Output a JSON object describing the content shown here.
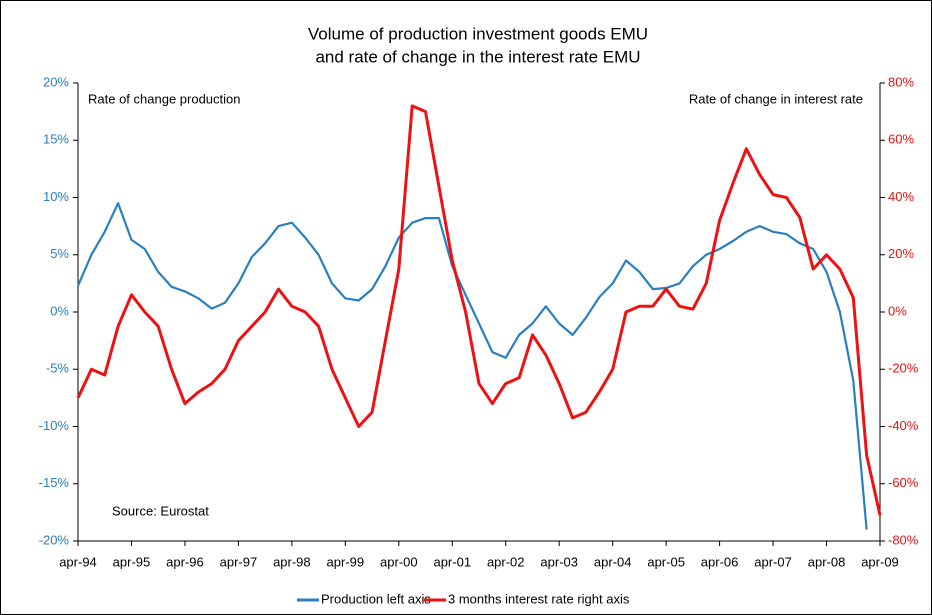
{
  "chart_data": {
    "type": "line",
    "title": [
      "Volume of production investment goods EMU",
      "and rate of change in the interest rate EMU"
    ],
    "annotations": {
      "left": "Rate of change production",
      "right": "Rate of change in interest rate",
      "source": "Source: Eurostat"
    },
    "categories": [
      "apr-94",
      null,
      null,
      null,
      "apr-95",
      null,
      null,
      null,
      "apr-96",
      null,
      null,
      null,
      "apr-97",
      null,
      null,
      null,
      "apr-98",
      null,
      null,
      null,
      "apr-99",
      null,
      null,
      null,
      "apr-00",
      null,
      null,
      null,
      "apr-01",
      null,
      null,
      null,
      "apr-02",
      null,
      null,
      null,
      "apr-03",
      null,
      null,
      null,
      "apr-04",
      null,
      null,
      null,
      "apr-05",
      null,
      null,
      null,
      "apr-06",
      null,
      null,
      null,
      "apr-07",
      null,
      null,
      null,
      "apr-08",
      null,
      null,
      null,
      "apr-09"
    ],
    "series": [
      {
        "name": "Production left axis",
        "color": "#2a7fc1",
        "axis": "y",
        "values": [
          2.3,
          5,
          7,
          9.5,
          6.3,
          5.5,
          3.5,
          2.2,
          1.8,
          1.2,
          0.3,
          0.8,
          2.5,
          4.8,
          6,
          7.5,
          7.8,
          6.5,
          5,
          2.5,
          1.2,
          1,
          2,
          4,
          6.5,
          7.8,
          8.2,
          8.2,
          4,
          1.5,
          -1,
          -3.5,
          -4,
          -2,
          -1,
          0.5,
          -1,
          -2,
          -0.5,
          1.3,
          2.5,
          4.5,
          3.5,
          2,
          2.1,
          2.5,
          4,
          5,
          5.5,
          6.2,
          7,
          7.5,
          7,
          6.8,
          6,
          5.5,
          3.5,
          0,
          -6,
          -19,
          null
        ]
      },
      {
        "name": "3 months interest rate right axis",
        "color": "#ee1111",
        "axis": "y2",
        "values": [
          -30,
          -20,
          -22,
          -5,
          6,
          0,
          -5,
          -20,
          -32,
          -28,
          -25,
          -20,
          -10,
          -5,
          0,
          8,
          2,
          0,
          -5,
          -20,
          -30,
          -40,
          -35,
          -10,
          15,
          72,
          70,
          44,
          18,
          0,
          -25,
          -32,
          -25,
          -23,
          -8,
          -15,
          -25,
          -37,
          -35,
          -28,
          -20,
          0,
          2,
          2,
          8,
          2,
          1,
          10,
          32,
          45,
          57,
          48,
          41,
          40,
          33,
          15,
          20,
          15,
          5,
          -50,
          -71
        ]
      }
    ],
    "ylim": [
      -20,
      20
    ],
    "yticks": [
      {
        "value": -20,
        "label": "-20%"
      },
      {
        "value": -15,
        "label": "-15%"
      },
      {
        "value": -10,
        "label": "-10%"
      },
      {
        "value": -5,
        "label": "-5%"
      },
      {
        "value": 0,
        "label": "0%"
      },
      {
        "value": 5,
        "label": "5%"
      },
      {
        "value": 10,
        "label": "10%"
      },
      {
        "value": 15,
        "label": "15%"
      },
      {
        "value": 20,
        "label": "20%"
      }
    ],
    "y2lim": [
      -80,
      80
    ],
    "y2ticks": [
      {
        "value": -80,
        "label": "-80%"
      },
      {
        "value": -60,
        "label": "-60%"
      },
      {
        "value": -40,
        "label": "-40%"
      },
      {
        "value": -20,
        "label": "-20%"
      },
      {
        "value": 0,
        "label": "0%"
      },
      {
        "value": 20,
        "label": "20%"
      },
      {
        "value": 40,
        "label": "40%"
      },
      {
        "value": 60,
        "label": "60%"
      },
      {
        "value": 80,
        "label": "80%"
      }
    ],
    "yaxis_color": "#2a7fc1",
    "y2axis_color": "#ee1111",
    "grid": false,
    "legend": "bottom"
  }
}
